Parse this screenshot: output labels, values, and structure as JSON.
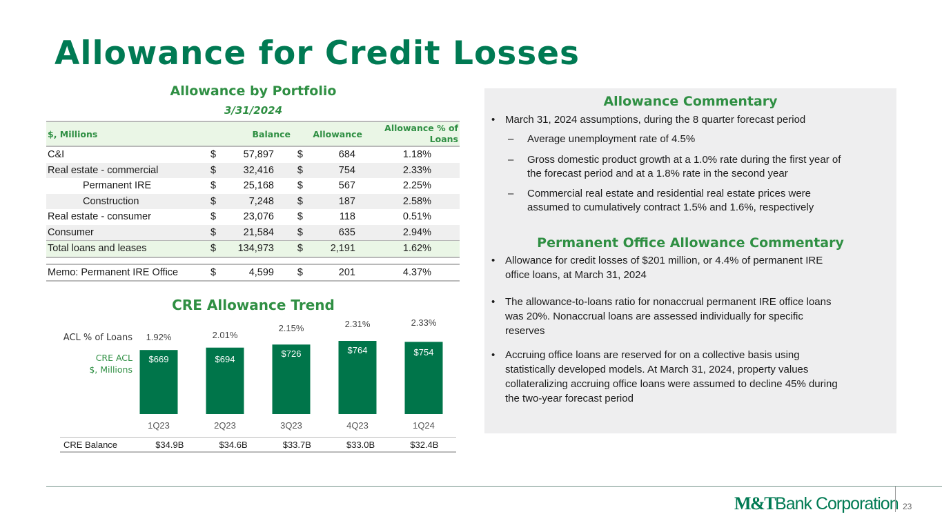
{
  "title": "Allowance for Credit Losses",
  "portfolio": {
    "title": "Allowance by Portfolio",
    "date": "3/31/2024",
    "headers": {
      "label": "$, Millions",
      "balance": "Balance",
      "allowance": "Allowance",
      "pct": "Allowance % of Loans"
    },
    "rows": [
      {
        "label": "C&I",
        "dollar": "$",
        "balance": "57,897",
        "dollar2": "$",
        "allowance": "684",
        "pct": "1.18%"
      },
      {
        "label": "Real estate - commercial",
        "dollar": "$",
        "balance": "32,416",
        "dollar2": "$",
        "allowance": "754",
        "pct": "2.33%"
      },
      {
        "label": "Permanent IRE",
        "dollar": "$",
        "balance": "25,168",
        "dollar2": "$",
        "allowance": "567",
        "pct": "2.25%"
      },
      {
        "label": "Construction",
        "dollar": "$",
        "balance": "7,248",
        "dollar2": "$",
        "allowance": "187",
        "pct": "2.58%"
      },
      {
        "label": "Real estate - consumer",
        "dollar": "$",
        "balance": "23,076",
        "dollar2": "$",
        "allowance": "118",
        "pct": "0.51%"
      },
      {
        "label": "Consumer",
        "dollar": "$",
        "balance": "21,584",
        "dollar2": "$",
        "allowance": "635",
        "pct": "2.94%"
      },
      {
        "label": "Total loans and leases",
        "dollar": "$",
        "balance": "134,973",
        "dollar2": "$",
        "allowance": "2,191",
        "pct": "1.62%"
      },
      {
        "label": "Memo: Permanent IRE Office",
        "dollar": "$",
        "balance": "4,599",
        "dollar2": "$",
        "allowance": "201",
        "pct": "4.37%"
      }
    ]
  },
  "cre": {
    "title": "CRE Allowance Trend",
    "balance_label": "CRE Balance",
    "balances": [
      "$34.9B",
      "$34.6B",
      "$33.7B",
      "$33.0B",
      "$32.4B"
    ]
  },
  "chart_data": {
    "type": "bar",
    "title": "CRE Allowance Trend",
    "categories": [
      "1Q23",
      "2Q23",
      "3Q23",
      "4Q23",
      "1Q24"
    ],
    "series": [
      {
        "name": "CRE ACL $, Millions",
        "values": [
          669,
          694,
          726,
          764,
          754
        ],
        "labels": [
          "$669",
          "$694",
          "$726",
          "$764",
          "$754"
        ]
      },
      {
        "name": "ACL % of Loans",
        "values": [
          1.92,
          2.01,
          2.15,
          2.31,
          2.33
        ],
        "labels": [
          "1.92%",
          "2.01%",
          "2.15%",
          "2.31%",
          "2.33%"
        ]
      }
    ],
    "pct_label": "ACL % of Loans",
    "acl_label_line1": "CRE ACL",
    "acl_label_line2": "$, Millions",
    "bar_color": "#00754a"
  },
  "commentary": {
    "title": "Allowance Commentary",
    "bullet1": "March 31, 2024 assumptions, during the 8 quarter forecast period",
    "dash1": "Average unemployment rate of 4.5%",
    "dash2_l1": "Gross domestic product growth at a 1.0% rate during the first year of",
    "dash2_l2": "the forecast period and at a 1.8% rate in the second year",
    "dash3_l1": "Commercial real estate and residential real estate prices were",
    "dash3_l2": "assumed to cumulatively contract 1.5% and 1.6%, respectively"
  },
  "office": {
    "title": "Permanent Office Allowance Commentary",
    "b1_l1": "Allowance for credit losses of $201 million, or 4.4% of permanent IRE",
    "b1_l2": "office loans, at March 31, 2024",
    "b2_l1": "The allowance-to-loans ratio for nonaccrual permanent IRE office loans",
    "b2_l2": "was 20%. Nonaccrual loans are assessed individually for specific",
    "b2_l3": "reserves",
    "b3_l1": "Accruing office loans are reserved for on a collective basis using",
    "b3_l2": "statistically developed models. At March 31, 2024, property values",
    "b3_l3": "collateralizing accruing office loans were assumed to decline 45% during",
    "b3_l4": "the two-year forecast period"
  },
  "footer": {
    "logo_mt": "M&T",
    "logo_bank": "Bank Corporation",
    "page": "23"
  },
  "glyphs": {
    "bullet": "•",
    "dash": "–"
  }
}
